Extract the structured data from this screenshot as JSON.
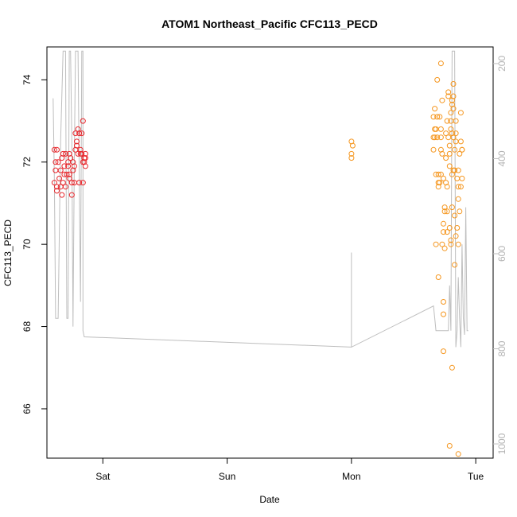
{
  "chart_data": {
    "type": "scatter",
    "title": "ATOM1 Northeast_Pacific CFC113_PECD",
    "xlabel": "Date",
    "ylabel": "CFC113_PECD",
    "x_ticks": [
      "Sat",
      "Sun",
      "Mon",
      "Tue"
    ],
    "x_tick_days": [
      1,
      2,
      3,
      4
    ],
    "xlim_days": [
      0.55,
      4.14
    ],
    "ylim": [
      64.8,
      74.8
    ],
    "y_ticks": [
      66,
      68,
      70,
      72,
      74
    ],
    "right_axis": {
      "ticks": [
        200,
        400,
        600,
        800,
        1000
      ],
      "range": [
        1030,
        165
      ],
      "color": "#bebebe"
    },
    "colors": {
      "series_a": "#e8262b",
      "series_b": "#f5961e",
      "overlay": "#bebebe"
    },
    "series": [
      {
        "points": [
          [
            0.61,
            72.3
          ],
          [
            0.61,
            71.5
          ],
          [
            0.62,
            71.8
          ],
          [
            0.62,
            72.0
          ],
          [
            0.63,
            71.4
          ],
          [
            0.63,
            71.3
          ],
          [
            0.63,
            72.3
          ],
          [
            0.64,
            72.0
          ],
          [
            0.65,
            71.6
          ],
          [
            0.66,
            71.4
          ],
          [
            0.66,
            71.8
          ],
          [
            0.67,
            71.2
          ],
          [
            0.67,
            72.1
          ],
          [
            0.68,
            72.2
          ],
          [
            0.68,
            71.5
          ],
          [
            0.69,
            71.7
          ],
          [
            0.69,
            71.9
          ],
          [
            0.7,
            72.2
          ],
          [
            0.7,
            71.4
          ],
          [
            0.71,
            71.7
          ],
          [
            0.72,
            71.9
          ],
          [
            0.72,
            72.0
          ],
          [
            0.73,
            71.6
          ],
          [
            0.73,
            71.7
          ],
          [
            0.73,
            72.2
          ],
          [
            0.74,
            72.1
          ],
          [
            0.75,
            71.5
          ],
          [
            0.75,
            71.2
          ],
          [
            0.76,
            71.8
          ],
          [
            0.76,
            72.0
          ],
          [
            0.77,
            71.9
          ],
          [
            0.77,
            71.5
          ],
          [
            0.78,
            72.7
          ],
          [
            0.78,
            72.3
          ],
          [
            0.79,
            72.5
          ],
          [
            0.79,
            72.4
          ],
          [
            0.8,
            72.2
          ],
          [
            0.8,
            72.8
          ],
          [
            0.81,
            72.7
          ],
          [
            0.81,
            71.5
          ],
          [
            0.82,
            72.2
          ],
          [
            0.82,
            72.3
          ],
          [
            0.83,
            72.2
          ],
          [
            0.83,
            72.7
          ],
          [
            0.84,
            72.0
          ],
          [
            0.84,
            71.5
          ],
          [
            0.85,
            72.1
          ],
          [
            0.85,
            72.0
          ],
          [
            0.84,
            73.0
          ],
          [
            0.86,
            72.2
          ],
          [
            0.86,
            72.1
          ],
          [
            0.86,
            71.9
          ]
        ]
      },
      {
        "points": [
          [
            3.0,
            72.5
          ],
          [
            3.01,
            72.4
          ],
          [
            3.0,
            72.2
          ],
          [
            3.0,
            72.1
          ],
          [
            3.66,
            73.1
          ],
          [
            3.66,
            72.6
          ],
          [
            3.66,
            72.3
          ],
          [
            3.67,
            72.8
          ],
          [
            3.67,
            73.3
          ],
          [
            3.67,
            72.6
          ],
          [
            3.68,
            72.8
          ],
          [
            3.68,
            71.7
          ],
          [
            3.68,
            70.0
          ],
          [
            3.69,
            74.0
          ],
          [
            3.69,
            73.1
          ],
          [
            3.69,
            72.6
          ],
          [
            3.7,
            71.7
          ],
          [
            3.7,
            71.5
          ],
          [
            3.7,
            71.4
          ],
          [
            3.7,
            69.2
          ],
          [
            3.71,
            71.5
          ],
          [
            3.71,
            73.1
          ],
          [
            3.72,
            72.3
          ],
          [
            3.72,
            72.6
          ],
          [
            3.72,
            72.8
          ],
          [
            3.72,
            71.7
          ],
          [
            3.72,
            74.4
          ],
          [
            3.73,
            73.5
          ],
          [
            3.73,
            72.2
          ],
          [
            3.73,
            70.0
          ],
          [
            3.74,
            71.6
          ],
          [
            3.74,
            70.5
          ],
          [
            3.74,
            70.3
          ],
          [
            3.74,
            68.6
          ],
          [
            3.74,
            68.3
          ],
          [
            3.74,
            67.4
          ],
          [
            3.75,
            69.9
          ],
          [
            3.75,
            70.9
          ],
          [
            3.75,
            70.8
          ],
          [
            3.76,
            72.7
          ],
          [
            3.76,
            72.1
          ],
          [
            3.76,
            71.5
          ],
          [
            3.77,
            71.4
          ],
          [
            3.77,
            70.3
          ],
          [
            3.77,
            70.8
          ],
          [
            3.77,
            73.0
          ],
          [
            3.78,
            73.7
          ],
          [
            3.78,
            73.6
          ],
          [
            3.78,
            72.6
          ],
          [
            3.79,
            72.4
          ],
          [
            3.79,
            72.2
          ],
          [
            3.79,
            70.4
          ],
          [
            3.79,
            71.9
          ],
          [
            3.8,
            70.0
          ],
          [
            3.8,
            72.8
          ],
          [
            3.8,
            73.2
          ],
          [
            3.8,
            73.0
          ],
          [
            3.8,
            70.1
          ],
          [
            3.81,
            72.7
          ],
          [
            3.81,
            73.5
          ],
          [
            3.81,
            73.4
          ],
          [
            3.81,
            70.9
          ],
          [
            3.81,
            71.7
          ],
          [
            3.82,
            73.6
          ],
          [
            3.82,
            73.9
          ],
          [
            3.82,
            73.3
          ],
          [
            3.82,
            72.6
          ],
          [
            3.82,
            71.8
          ],
          [
            3.83,
            72.3
          ],
          [
            3.83,
            71.8
          ],
          [
            3.83,
            70.7
          ],
          [
            3.83,
            69.5
          ],
          [
            3.84,
            72.5
          ],
          [
            3.84,
            73.0
          ],
          [
            3.84,
            70.2
          ],
          [
            3.84,
            72.7
          ],
          [
            3.85,
            71.6
          ],
          [
            3.85,
            70.4
          ],
          [
            3.86,
            70.0
          ],
          [
            3.86,
            71.8
          ],
          [
            3.86,
            71.4
          ],
          [
            3.86,
            71.1
          ],
          [
            3.87,
            72.2
          ],
          [
            3.87,
            70.8
          ],
          [
            3.88,
            73.2
          ],
          [
            3.88,
            72.5
          ],
          [
            3.88,
            71.4
          ],
          [
            3.89,
            72.3
          ],
          [
            3.89,
            72.3
          ],
          [
            3.89,
            71.6
          ],
          [
            3.79,
            65.1
          ],
          [
            3.81,
            67.0
          ],
          [
            3.86,
            64.9
          ]
        ]
      }
    ],
    "overlay_line": {
      "points": [
        [
          0.6,
          73.55
        ],
        [
          0.61,
          71.5
        ],
        [
          0.62,
          68.2
        ],
        [
          0.63,
          68.2
        ],
        [
          0.64,
          68.2
        ],
        [
          0.66,
          72.5
        ],
        [
          0.68,
          74.7
        ],
        [
          0.7,
          74.7
        ],
        [
          0.71,
          68.2
        ],
        [
          0.72,
          68.2
        ],
        [
          0.73,
          74.7
        ],
        [
          0.74,
          74.7
        ],
        [
          0.75,
          72.5
        ],
        [
          0.76,
          68.0
        ],
        [
          0.77,
          72.0
        ],
        [
          0.78,
          74.7
        ],
        [
          0.8,
          74.7
        ],
        [
          0.82,
          68.6
        ],
        [
          0.83,
          74.7
        ],
        [
          0.84,
          74.7
        ],
        [
          0.84,
          67.9
        ],
        [
          0.85,
          67.75
        ],
        [
          3.0,
          67.5
        ],
        [
          3.66,
          68.5
        ],
        [
          3.67,
          68.2
        ],
        [
          3.68,
          67.9
        ],
        [
          3.74,
          67.9
        ],
        [
          3.75,
          67.9
        ],
        [
          3.76,
          67.9
        ],
        [
          3.78,
          67.9
        ],
        [
          3.79,
          69.0
        ],
        [
          3.8,
          67.9
        ],
        [
          3.81,
          74.7
        ],
        [
          3.83,
          74.7
        ],
        [
          3.84,
          67.5
        ],
        [
          3.85,
          67.9
        ],
        [
          3.86,
          69.2
        ],
        [
          3.87,
          68.2
        ],
        [
          3.88,
          67.5
        ],
        [
          3.89,
          70.0
        ],
        [
          3.9,
          68.2
        ],
        [
          3.91,
          67.8
        ],
        [
          3.92,
          70.9
        ],
        [
          3.93,
          67.9
        ],
        [
          3.94,
          67.9
        ]
      ],
      "start_spike_days": [
        3.0,
        3.0
      ],
      "start_spike_values": [
        69.8,
        67.5
      ]
    }
  }
}
